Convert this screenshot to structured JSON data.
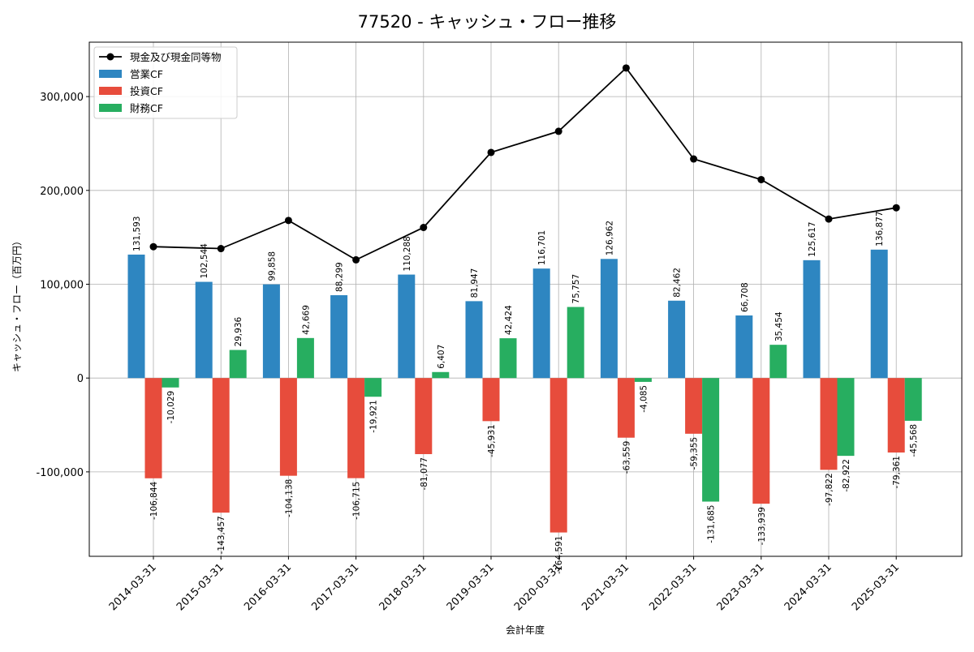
{
  "chart_data": {
    "type": "bar",
    "title": "77520 - キャッシュ・フロー推移",
    "xlabel": "会計年度",
    "ylabel": "キャッシュ・フロー（百万円）",
    "categories": [
      "2014-03-31",
      "2015-03-31",
      "2016-03-31",
      "2017-03-31",
      "2018-03-31",
      "2019-03-31",
      "2020-03-31",
      "2021-03-31",
      "2022-03-31",
      "2023-03-31",
      "2024-03-31",
      "2025-03-31"
    ],
    "series": [
      {
        "name": "営業CF",
        "kind": "bar",
        "color": "#2e86c1",
        "values": [
          131593,
          102544,
          99858,
          88299,
          110288,
          81947,
          116701,
          126962,
          82462,
          66708,
          125617,
          136877
        ],
        "labels": [
          "131,593",
          "102,544",
          "99,858",
          "88,299",
          "110,288",
          "81,947",
          "116,701",
          "126,962",
          "82,462",
          "66,708",
          "125,617",
          "136,877"
        ]
      },
      {
        "name": "投資CF",
        "kind": "bar",
        "color": "#e74c3c",
        "values": [
          -106844,
          -143457,
          -104138,
          -106715,
          -81077,
          -45931,
          -164591,
          -63559,
          -59355,
          -133939,
          -97822,
          -79361
        ],
        "labels": [
          "-106,844",
          "-143,457",
          "-104,138",
          "-106,715",
          "-81,077",
          "-45,931",
          "-164,591",
          "-63,559",
          "-59,355",
          "-133,939",
          "-97,822",
          "-79,361"
        ]
      },
      {
        "name": "財務CF",
        "kind": "bar",
        "color": "#27ae60",
        "values": [
          -10029,
          29936,
          42669,
          -19921,
          6407,
          42424,
          75757,
          -4085,
          -131685,
          35454,
          -82922,
          -45568
        ],
        "labels": [
          "-10,029",
          "29,936",
          "42,669",
          "-19,921",
          "6,407",
          "42,424",
          "75,757",
          "-4,085",
          "-131,685",
          "35,454",
          "-82,922",
          "-45,568"
        ]
      },
      {
        "name": "現金及び現金同等物",
        "kind": "line",
        "color": "#000000",
        "values": [
          140000,
          138000,
          168000,
          126000,
          160500,
          240500,
          263000,
          330500,
          233500,
          211500,
          169500,
          181500
        ]
      }
    ],
    "ylim": [
      -190000,
      358000
    ],
    "yticks": [
      -100000,
      0,
      100000,
      200000,
      300000
    ],
    "ytick_labels": [
      "-100,000",
      "0",
      "100,000",
      "200,000",
      "300,000"
    ],
    "grid": true,
    "legend_position": "top-left"
  }
}
